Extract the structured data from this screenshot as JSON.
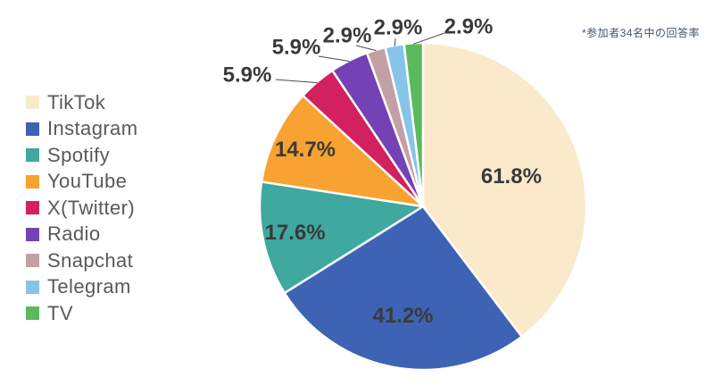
{
  "note": "*参加者34名中の回答率",
  "chart_data": {
    "type": "pie",
    "title": "",
    "legend_position": "left",
    "direction": "clockwise",
    "start_angle_deg": 0,
    "categories": [
      "TikTok",
      "Instagram",
      "Spotify",
      "YouTube",
      "X(Twitter)",
      "Radio",
      "Snapchat",
      "Telegram",
      "TV"
    ],
    "values": [
      61.8,
      41.2,
      17.6,
      14.7,
      5.9,
      5.9,
      2.9,
      2.9,
      2.9
    ],
    "percent_labels": [
      "61.8%",
      "41.2%",
      "17.6%",
      "14.7%",
      "5.9%",
      "5.9%",
      "2.9%",
      "2.9%",
      "2.9%"
    ],
    "colors": [
      "#FAEACB",
      "#3E63B5",
      "#3FA89F",
      "#F8A331",
      "#D3205F",
      "#7442B4",
      "#C2A0A6",
      "#86C5E7",
      "#5ABA5C"
    ],
    "annotation": "*参加者34名中の回答率"
  }
}
